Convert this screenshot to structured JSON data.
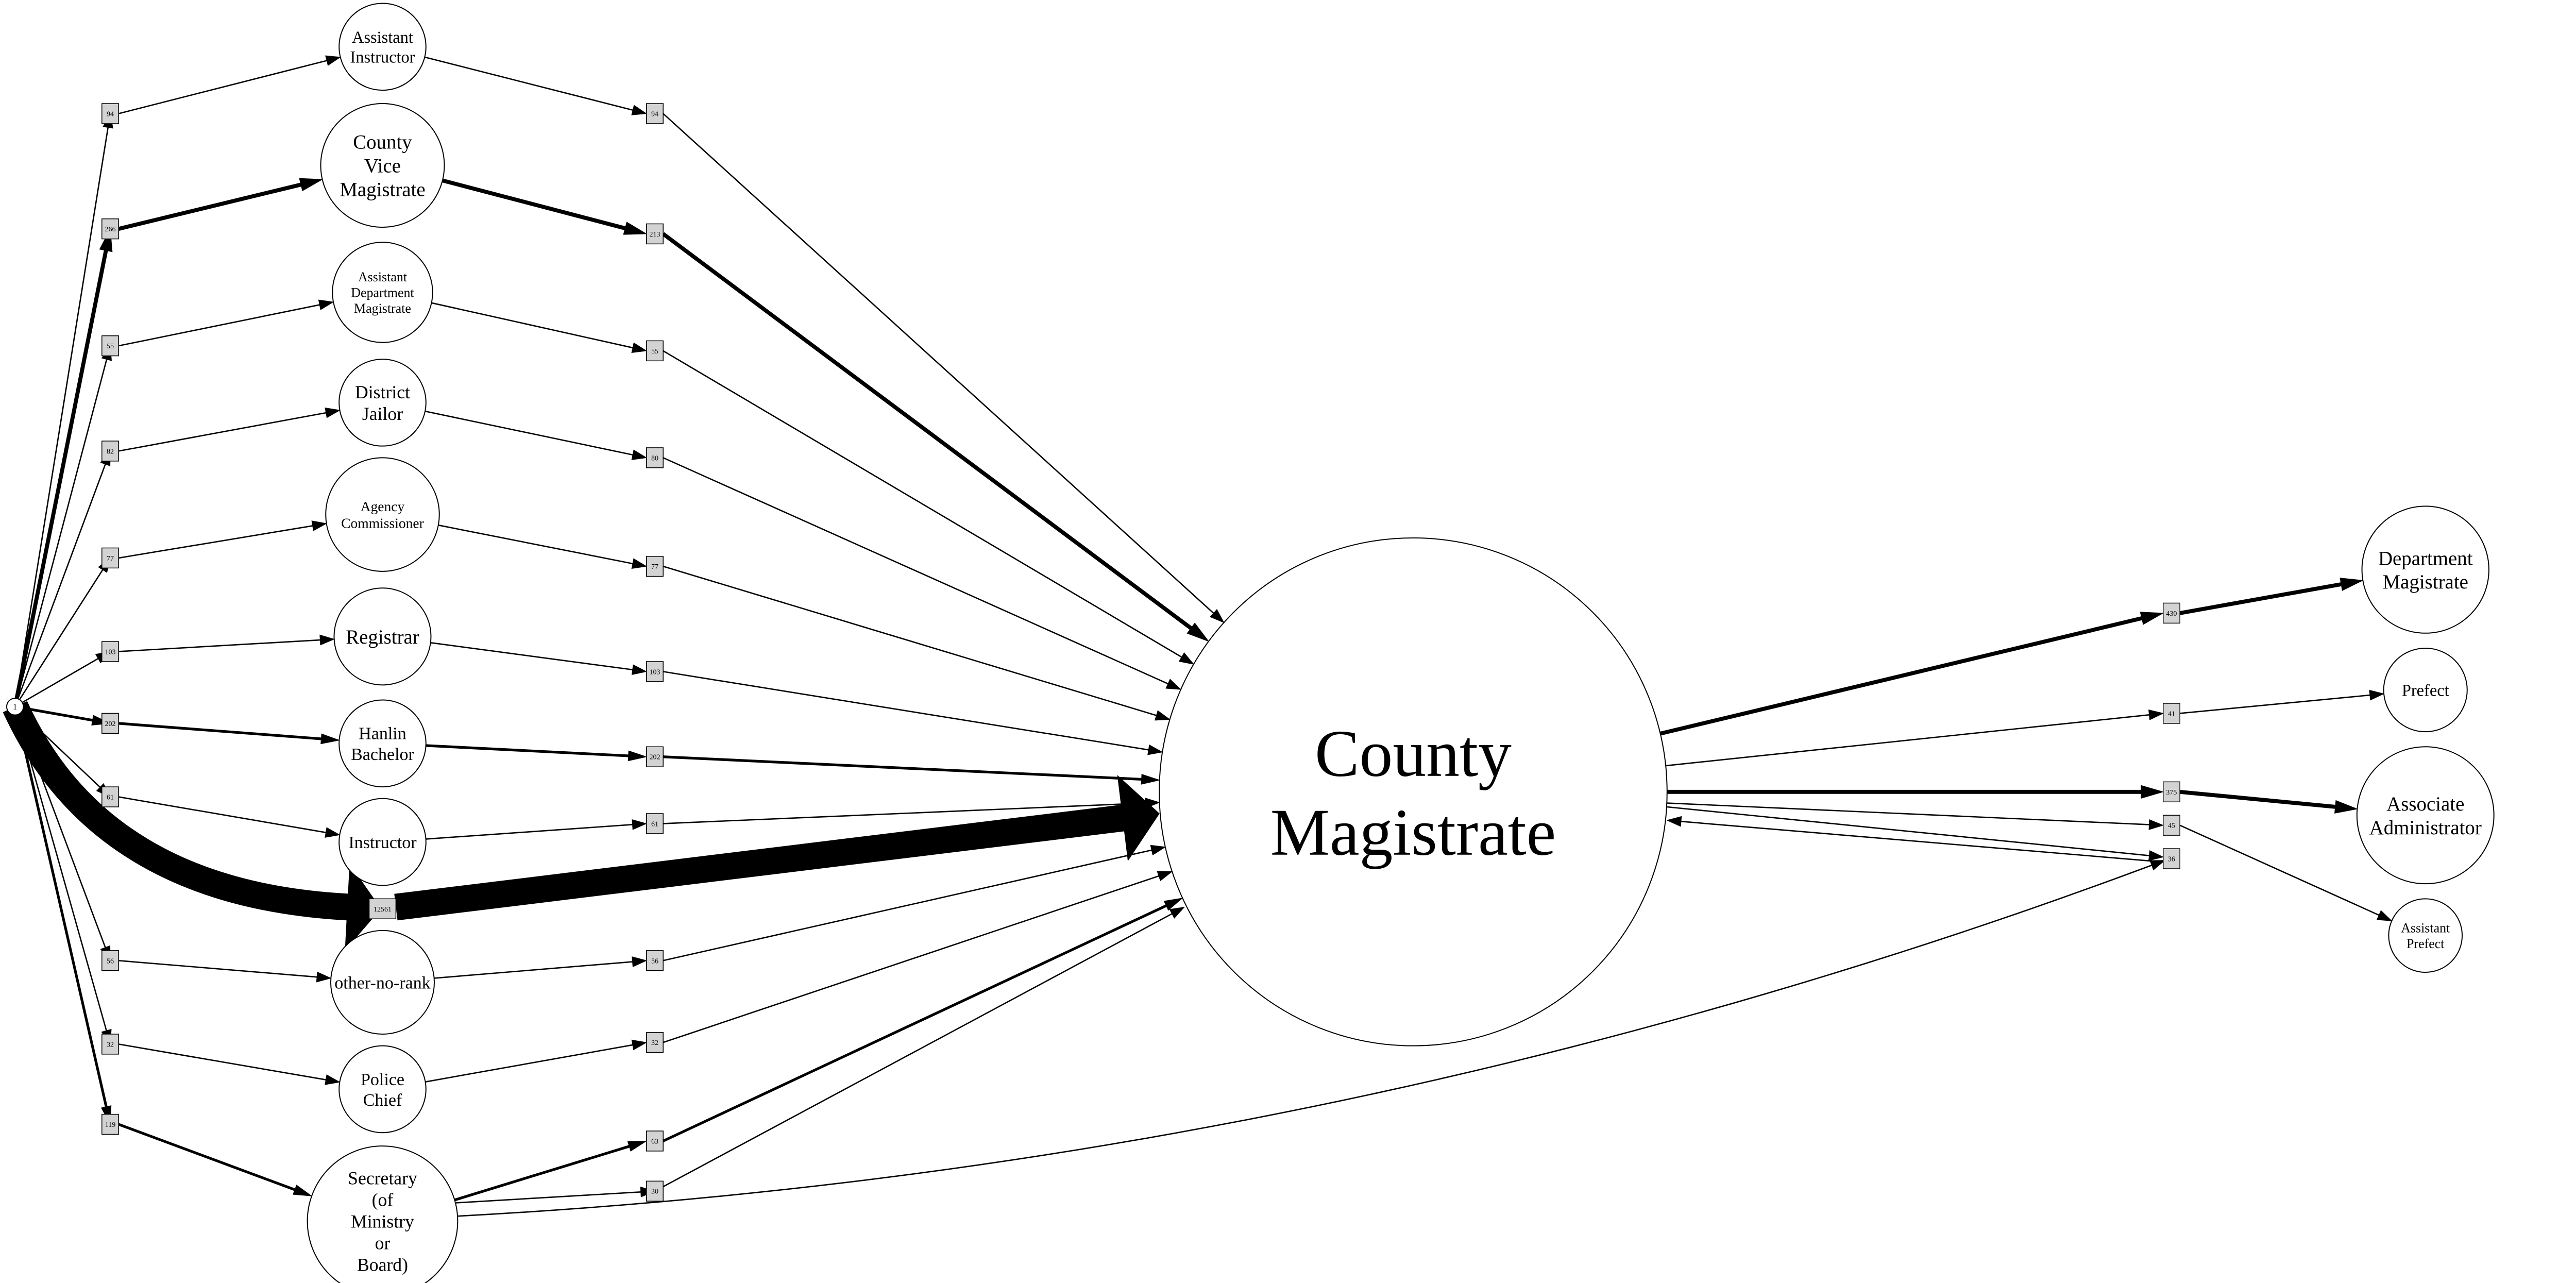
{
  "diagram": {
    "source_node": {
      "label": "1"
    },
    "central_node": {
      "label": [
        "County",
        "Magistrate"
      ]
    },
    "incoming": [
      {
        "id": "assistant-instructor",
        "label": [
          "Assistant",
          "Instructor"
        ],
        "left_count": "94",
        "right_count": "94",
        "weight": 1
      },
      {
        "id": "county-vice-magistrate",
        "label": [
          "County",
          "Vice",
          "Magistrate"
        ],
        "left_count": "266",
        "right_count": "213",
        "weight": 3
      },
      {
        "id": "assistant-department-magistrate",
        "label": [
          "Assistant",
          "Department",
          "Magistrate"
        ],
        "left_count": "55",
        "right_count": "55",
        "weight": 1
      },
      {
        "id": "district-jailor",
        "label": [
          "District",
          "Jailor"
        ],
        "left_count": "82",
        "right_count": "80",
        "weight": 1
      },
      {
        "id": "agency-commissioner",
        "label": [
          "Agency",
          "Commissioner"
        ],
        "left_count": "77",
        "right_count": "77",
        "weight": 1
      },
      {
        "id": "registrar",
        "label": [
          "Registrar"
        ],
        "left_count": "103",
        "right_count": "103",
        "weight": 1
      },
      {
        "id": "hanlin-bachelor",
        "label": [
          "Hanlin",
          "Bachelor"
        ],
        "left_count": "202",
        "right_count": "202",
        "weight": 2
      },
      {
        "id": "instructor",
        "label": [
          "Instructor"
        ],
        "left_count": "61",
        "right_count": "61",
        "weight": 1
      },
      {
        "id": "other-no-rank",
        "label": [
          "other-no-rank"
        ],
        "left_count": "56",
        "right_count": "56",
        "weight": 1
      },
      {
        "id": "police-chief",
        "label": [
          "Police",
          "Chief"
        ],
        "left_count": "32",
        "right_count": "32",
        "weight": 1
      },
      {
        "id": "secretary",
        "label": [
          "Secretary",
          "(of",
          "Ministry",
          "or",
          "Board)"
        ],
        "left_count": "119",
        "right_count": "63",
        "weight": 2
      }
    ],
    "direct_flow": {
      "count": "12561"
    },
    "secretary_extra_count": "30",
    "outgoing": [
      {
        "id": "department-magistrate",
        "label": [
          "Department",
          "Magistrate"
        ],
        "count": "430",
        "weight": 3
      },
      {
        "id": "prefect",
        "label": [
          "Prefect"
        ],
        "count": "41",
        "weight": 1
      },
      {
        "id": "associate-administrator",
        "label": [
          "Associate",
          "Administrator"
        ],
        "count": "375",
        "weight": 3
      },
      {
        "id": "assistant-prefect",
        "label": [
          "Assistant",
          "Prefect"
        ],
        "count": "45",
        "weight": 1
      }
    ],
    "return_count": "36"
  }
}
